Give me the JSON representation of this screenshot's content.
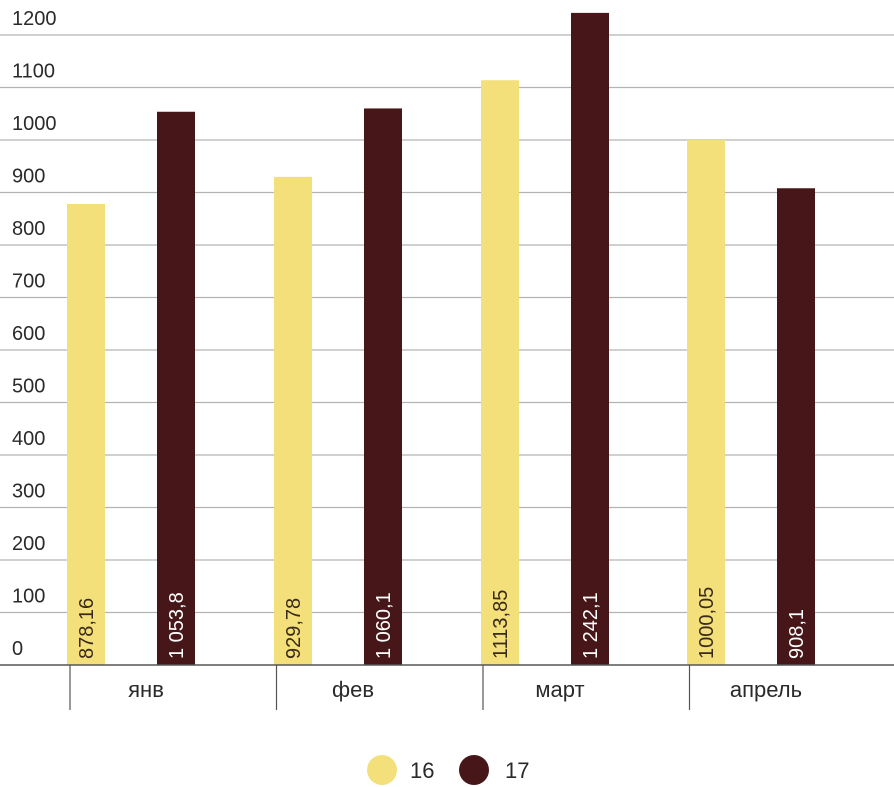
{
  "chart_data": {
    "type": "bar",
    "categories": [
      "янв",
      "фев",
      "март",
      "апрель"
    ],
    "series": [
      {
        "name": "16",
        "color": "#f3e07a",
        "label_color": "#3a2a1a",
        "values": [
          878.16,
          929.78,
          1113.85,
          1000.05
        ],
        "labels": [
          "878,16",
          "929,78",
          "1113,85",
          "1000,05"
        ]
      },
      {
        "name": "17",
        "color": "#461618",
        "label_color": "#ffffff",
        "values": [
          1053.8,
          1060.1,
          1242.1,
          908.1
        ],
        "labels": [
          "1 053,8",
          "1 060,1",
          "1 242,1",
          "908,1"
        ]
      }
    ],
    "yticks": [
      "0",
      "100",
      "200",
      "300",
      "400",
      "500",
      "600",
      "700",
      "800",
      "900",
      "1000",
      "1100",
      "1200"
    ],
    "ylim": [
      0,
      1200
    ],
    "grid": true,
    "legend_position": "bottom-center",
    "title": "",
    "xlabel": "",
    "ylabel": ""
  }
}
